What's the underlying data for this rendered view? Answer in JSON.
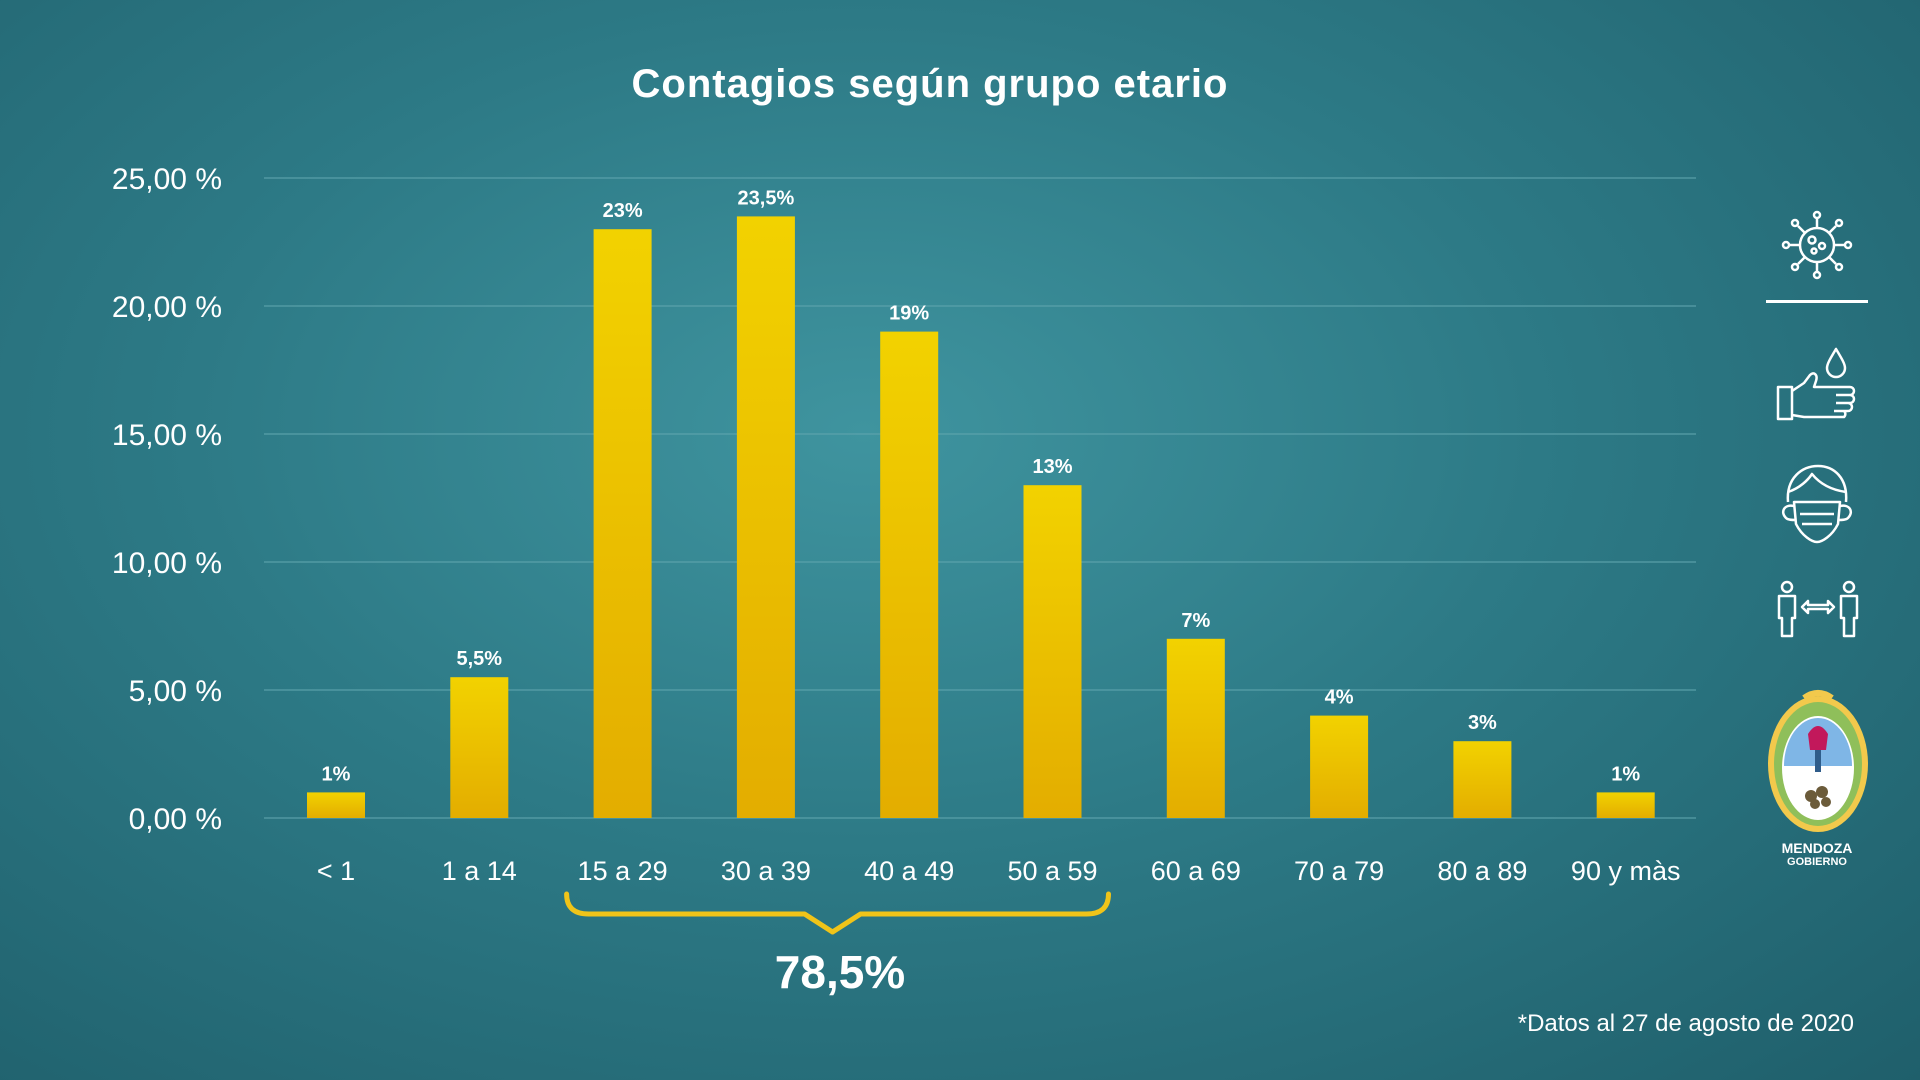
{
  "title": "Contagios según grupo etario",
  "callout": {
    "value": "78,5%"
  },
  "footnote": "*Datos al 27 de agosto de 2020",
  "logo": {
    "name": "MENDOZA",
    "subtitle": "GOBIERNO"
  },
  "icons": [
    "virus-icon",
    "hand-washing-icon",
    "face-mask-icon",
    "social-distance-icon"
  ],
  "colors": {
    "bar_top": "#f2d200",
    "bar_bottom": "#e3ad00",
    "bracket": "#f0c419",
    "background": "#2d7a86"
  },
  "chart_data": {
    "type": "bar",
    "title": "Contagios según grupo etario",
    "categories": [
      "< 1",
      "1 a 14",
      "15 a 29",
      "30 a 39",
      "40 a 49",
      "50 a 59",
      "60 a 69",
      "70 a 79",
      "80 a 89",
      "90 y màs"
    ],
    "values": [
      1,
      5.5,
      23,
      23.5,
      19,
      13,
      7,
      4,
      3,
      1
    ],
    "data_labels": [
      "1%",
      "5,5%",
      "23%",
      "23,5%",
      "19%",
      "13%",
      "7%",
      "4%",
      "3%",
      "1%"
    ],
    "yticks": [
      "0,00 %",
      "5,00 %",
      "10,00 %",
      "15,00 %",
      "20,00 %",
      "25,00 %"
    ],
    "ylim": [
      0,
      25
    ],
    "grid": true,
    "annotation": {
      "text": "78,5%",
      "spans": [
        "15 a 29",
        "50 a 59"
      ]
    }
  }
}
